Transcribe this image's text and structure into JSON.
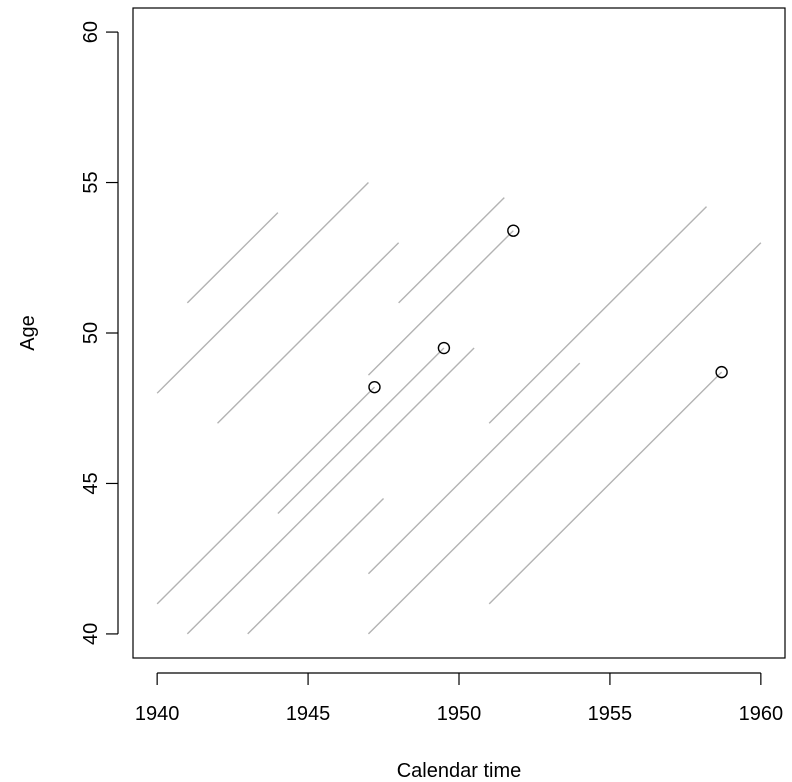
{
  "chart_data": {
    "type": "line",
    "title": "",
    "xlabel": "Calendar time",
    "ylabel": "Age",
    "xlim": [
      1939.2,
      1960.8
    ],
    "ylim": [
      39.2,
      60.8
    ],
    "x_ticks": [
      "1940",
      "1945",
      "1950",
      "1955",
      "1960"
    ],
    "y_ticks": [
      "40",
      "45",
      "50",
      "55",
      "60"
    ],
    "grid": false,
    "legend": "none",
    "colors": {
      "lifeline": "#b3b3b3",
      "event_point": "#000000",
      "axis": "#000000"
    },
    "lifelines": [
      {
        "x": [
          1941,
          1944
        ],
        "y": [
          51,
          54
        ]
      },
      {
        "x": [
          1940,
          1947
        ],
        "y": [
          48,
          55
        ]
      },
      {
        "x": [
          1942,
          1948
        ],
        "y": [
          47,
          53
        ]
      },
      {
        "x": [
          1948,
          1951.5
        ],
        "y": [
          51,
          54.5
        ]
      },
      {
        "x": [
          1947,
          1951.8
        ],
        "y": [
          48.6,
          53.4
        ]
      },
      {
        "x": [
          1940,
          1947.2
        ],
        "y": [
          41,
          48.2
        ]
      },
      {
        "x": [
          1944,
          1949.5
        ],
        "y": [
          44,
          49.5
        ]
      },
      {
        "x": [
          1941,
          1950.5
        ],
        "y": [
          40,
          49.5
        ]
      },
      {
        "x": [
          1943,
          1947.5
        ],
        "y": [
          40,
          44.5
        ]
      },
      {
        "x": [
          1947,
          1954
        ],
        "y": [
          42,
          49
        ]
      },
      {
        "x": [
          1947,
          1960
        ],
        "y": [
          40,
          53
        ]
      },
      {
        "x": [
          1951,
          1958.2
        ],
        "y": [
          47,
          54.2
        ]
      },
      {
        "x": [
          1951,
          1958.7
        ],
        "y": [
          41,
          48.7
        ]
      }
    ],
    "events": [
      {
        "x": 1947.2,
        "y": 48.2
      },
      {
        "x": 1949.5,
        "y": 49.5
      },
      {
        "x": 1951.8,
        "y": 53.4
      },
      {
        "x": 1958.7,
        "y": 48.7
      }
    ]
  }
}
